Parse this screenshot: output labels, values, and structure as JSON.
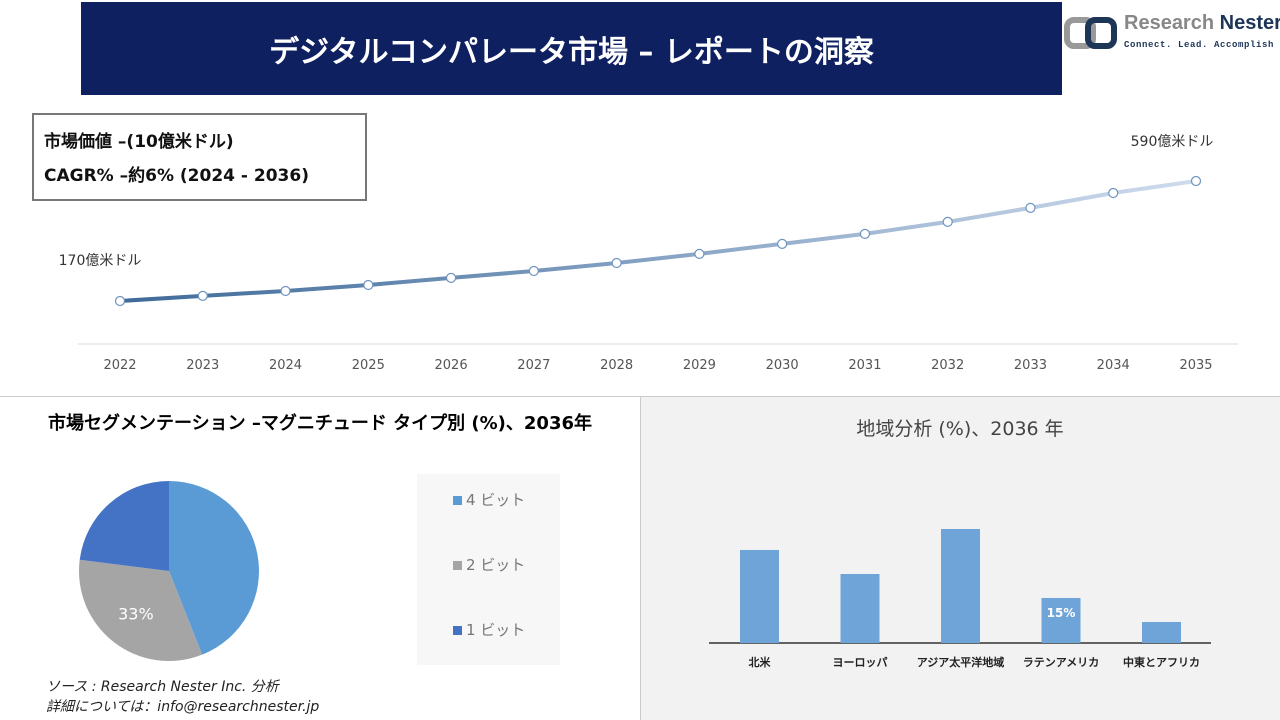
{
  "header": {
    "title": "デジタルコンパレータ市場 – レポートの洞察",
    "logo_name": "Research",
    "logo_name_bold": "Nester",
    "logo_tagline": "Connect. Lead. Accomplish"
  },
  "info": {
    "line1": "市場価値 –(10億米ドル)",
    "line2": "CAGR% –約6% (2024 - 2036)"
  },
  "colors": {
    "banner": "#0e2060",
    "line_start": "#3e6a99",
    "line_end": "#cfdcee",
    "bar": "#6fa4d8"
  },
  "chart_data": [
    {
      "type": "line",
      "x": [
        "2022",
        "2023",
        "2024",
        "2025",
        "2026",
        "2027",
        "2028",
        "2029",
        "2030",
        "2031",
        "2032",
        "2033",
        "2034",
        "2035"
      ],
      "values": [
        17,
        18.8,
        20.5,
        22.6,
        25.1,
        27.5,
        30.3,
        33.5,
        37,
        40.5,
        44.7,
        49.6,
        54.8,
        59
      ],
      "annotations": {
        "first": "170億米ドル",
        "last": "590億米ドル"
      },
      "grid": false
    },
    {
      "type": "pie",
      "title": "市場セグメンテーション –マグニチュード タイプ別 (%)、2036年",
      "categories": [
        "4 ビット",
        "2 ビット",
        "1 ビット"
      ],
      "values": [
        44,
        33,
        23
      ],
      "colors": [
        "#5b9bd5",
        "#a5a5a5",
        "#4472c4"
      ],
      "data_labels": [
        "",
        "33%",
        ""
      ],
      "legend": "right"
    },
    {
      "type": "bar",
      "title": "地域分析 (%)、2036 年",
      "categories": [
        "北米",
        "ヨーロッパ",
        "アジア太平洋地域",
        "ラテンアメリカ",
        "中東とアフリカ"
      ],
      "values": [
        31,
        23,
        38,
        15,
        7
      ],
      "data_labels": [
        "",
        "",
        "",
        "15%",
        ""
      ]
    }
  ],
  "source": {
    "line1": "ソース : Research Nester Inc. 分析",
    "line2": "詳細については：info@researchnester.jp"
  }
}
